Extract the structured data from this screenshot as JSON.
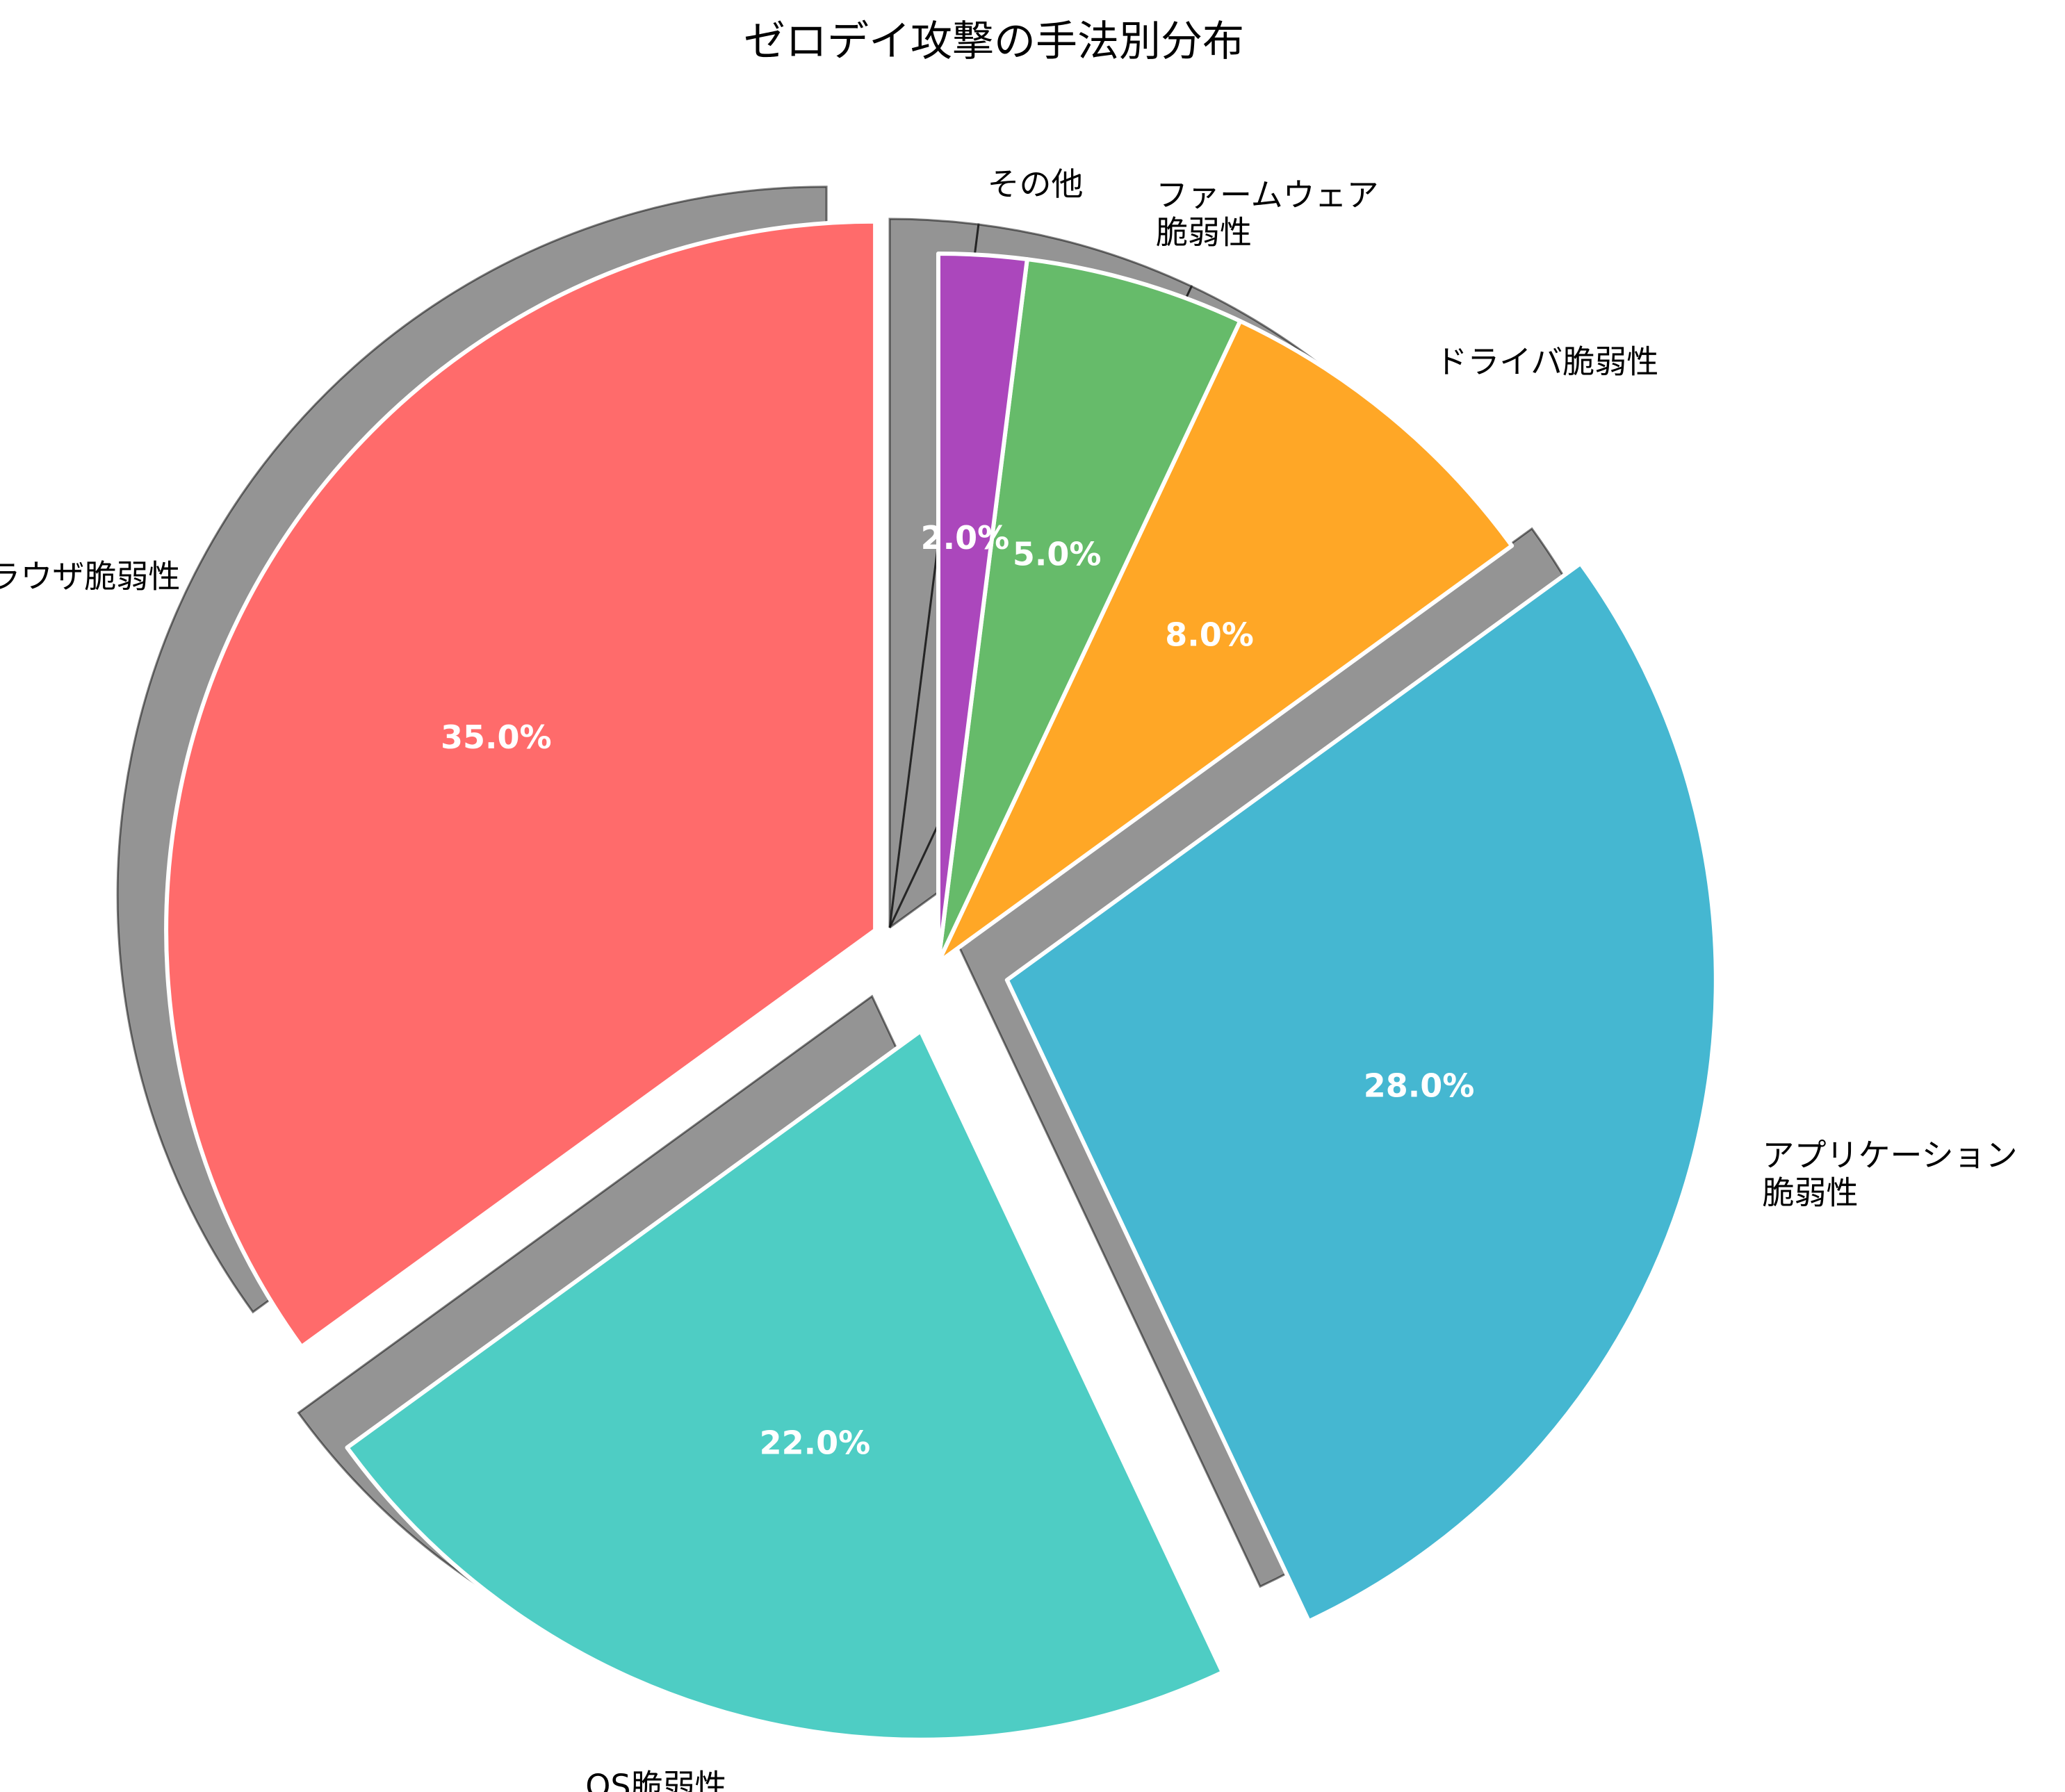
{
  "chart_data": {
    "type": "pie",
    "title": "ゼロデイ攻撃の手法別分布",
    "slices": [
      {
        "label": "ブラウザ脆弱性",
        "value": 35.0,
        "percent_label": "35.0%",
        "color": "#FF6B6B",
        "exploded": true
      },
      {
        "label": "OS脆弱性",
        "value": 22.0,
        "percent_label": "22.0%",
        "color": "#4ECDC4",
        "exploded": true
      },
      {
        "label": "アプリケーション\n脆弱性",
        "value": 28.0,
        "percent_label": "28.0%",
        "color": "#45B7D1",
        "exploded": true
      },
      {
        "label": "ドライバ脆弱性",
        "value": 8.0,
        "percent_label": "8.0%",
        "color": "#FFA726",
        "exploded": false
      },
      {
        "label": "ファームウェア\n脆弱性",
        "value": 5.0,
        "percent_label": "5.0%",
        "color": "#66BB6A",
        "exploded": false
      },
      {
        "label": "その他",
        "value": 2.0,
        "percent_label": "2.0%",
        "color": "#AB47BC",
        "exploded": false
      }
    ],
    "start_angle": "top",
    "direction": "counterclockwise",
    "shadow": true,
    "legend": false
  }
}
